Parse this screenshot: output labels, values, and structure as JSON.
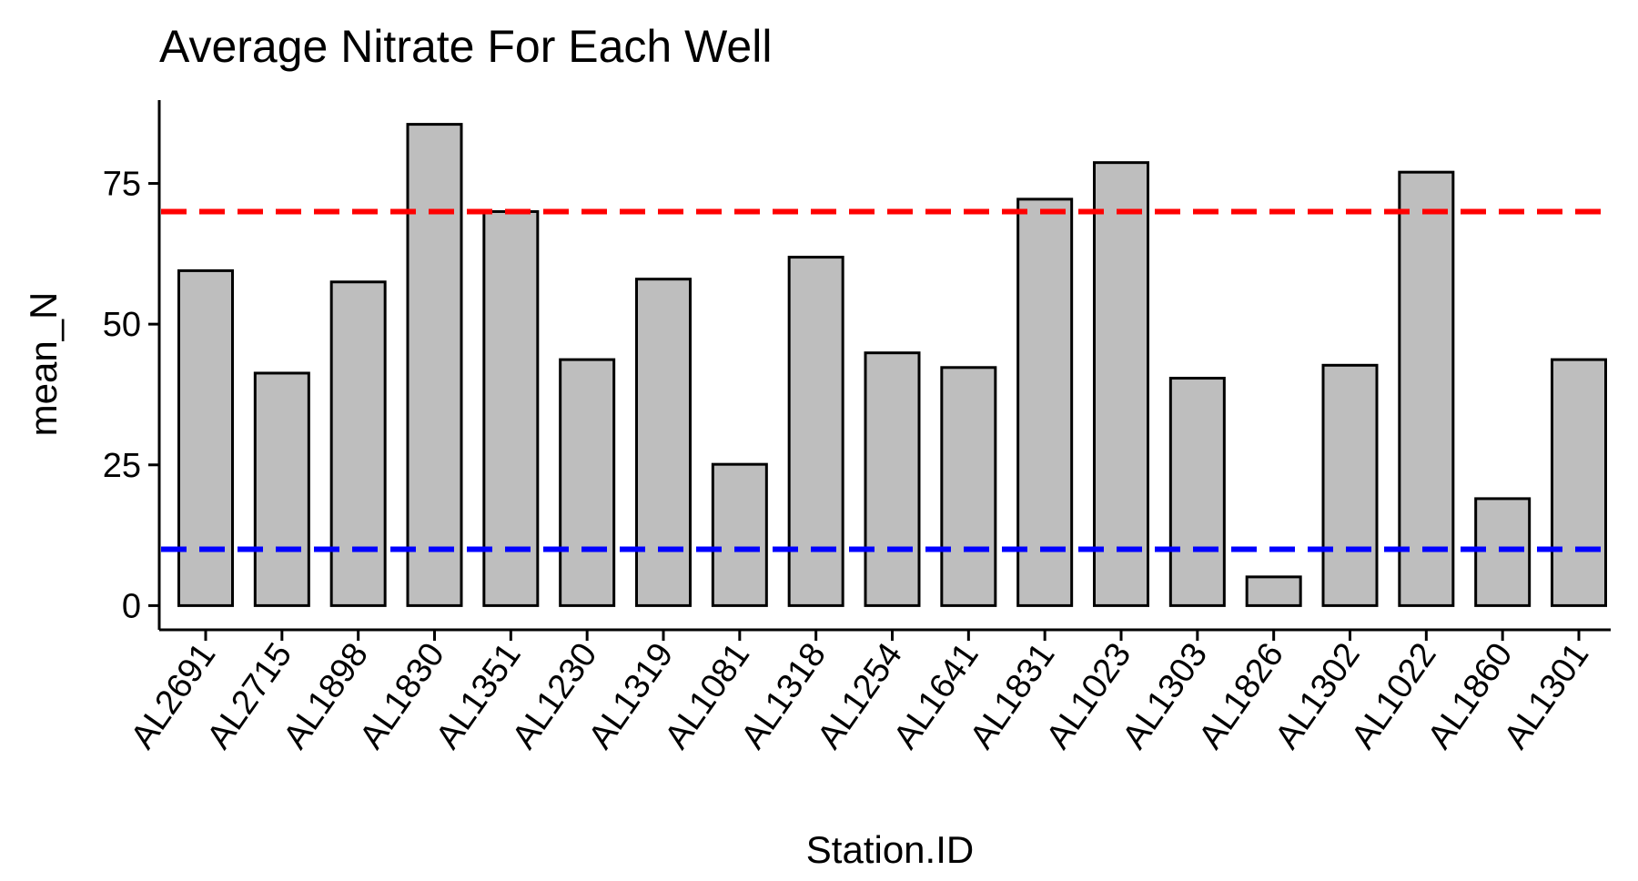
{
  "chart_data": {
    "type": "bar",
    "title": "Average Nitrate For Each Well",
    "xlabel": "Station.ID",
    "ylabel": "mean_N",
    "categories": [
      "AL2691",
      "AL2715",
      "AL1898",
      "AL1830",
      "AL1351",
      "AL1230",
      "AL1319",
      "AL1081",
      "AL1318",
      "AL1254",
      "AL1641",
      "AL1831",
      "AL1023",
      "AL1303",
      "AL1826",
      "AL1302",
      "AL1022",
      "AL1860",
      "AL1301"
    ],
    "values": [
      59.5,
      41.3,
      57.5,
      85.5,
      70.0,
      43.7,
      58.0,
      25.1,
      61.9,
      44.9,
      42.3,
      72.2,
      78.7,
      40.4,
      5.1,
      42.7,
      77.0,
      19.0,
      43.7
    ],
    "ylim": [
      -4.3,
      89.8
    ],
    "yticks": [
      0,
      25,
      50,
      75
    ],
    "ytick_labels": [
      "0",
      "25",
      "50",
      "75"
    ],
    "reference_lines": [
      {
        "value": 70,
        "color": "#ff0000",
        "style": "dashed"
      },
      {
        "value": 10,
        "color": "#0000ff",
        "style": "dashed"
      }
    ],
    "bar_fill": "#bebebe",
    "bar_stroke": "#000000",
    "grid": false,
    "legend": "none"
  }
}
